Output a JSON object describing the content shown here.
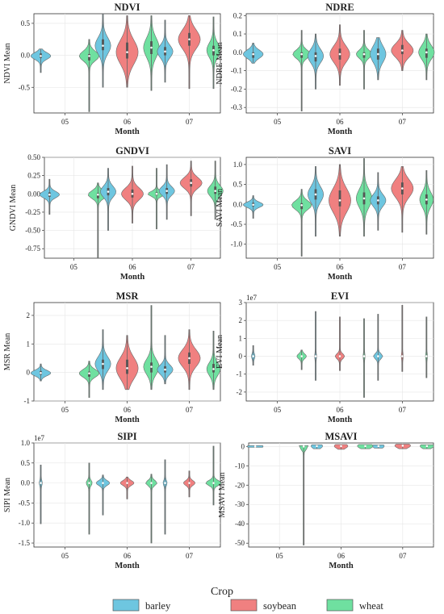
{
  "colors": {
    "barley": "#6ec6e0",
    "soybean": "#f08080",
    "wheat": "#6fe0a0"
  },
  "legend": {
    "title": "Crop",
    "placement": "bottom-center",
    "items": [
      {
        "key": "barley",
        "label": "barley"
      },
      {
        "key": "soybean",
        "label": "soybean"
      },
      {
        "key": "wheat",
        "label": "wheat"
      }
    ]
  },
  "chart_data": [
    {
      "type": "violin",
      "title": "NDVI",
      "xlabel": "Month",
      "ylabel": "NDVI Mean",
      "categories": [
        "05",
        "06",
        "07"
      ],
      "ylim": [
        -0.9,
        0.65
      ],
      "yticks": [
        0.5,
        0.0,
        -0.5
      ],
      "yticklabels": [
        "0.5",
        "0.0",
        "-0.5"
      ],
      "grid": true,
      "sci": "",
      "violins": [
        {
          "crop": "barley",
          "month": "05",
          "min": -0.27,
          "max": 0.1,
          "q1": -0.04,
          "median": -0.01,
          "q3": 0.03,
          "width": 0.9
        },
        {
          "crop": "wheat",
          "month": "05",
          "min": -0.88,
          "max": 0.25,
          "q1": -0.08,
          "median": -0.01,
          "q3": 0.02,
          "width": 0.9
        },
        {
          "crop": "barley",
          "month": "06",
          "min": -0.5,
          "max": 0.65,
          "q1": 0.08,
          "median": 0.15,
          "q3": 0.25,
          "width": 0.7
        },
        {
          "crop": "soybean",
          "month": "06",
          "min": -0.5,
          "max": 0.62,
          "q1": -0.05,
          "median": 0.05,
          "q3": 0.2,
          "width": 1.0
        },
        {
          "crop": "wheat",
          "month": "06",
          "min": -0.55,
          "max": 0.62,
          "q1": 0.02,
          "median": 0.12,
          "q3": 0.22,
          "width": 0.7
        },
        {
          "crop": "barley",
          "month": "07",
          "min": -0.42,
          "max": 0.55,
          "q1": 0.0,
          "median": 0.06,
          "q3": 0.13,
          "width": 0.7
        },
        {
          "crop": "soybean",
          "month": "07",
          "min": -0.52,
          "max": 0.62,
          "q1": 0.15,
          "median": 0.25,
          "q3": 0.35,
          "width": 1.0
        },
        {
          "crop": "wheat",
          "month": "07",
          "min": -0.52,
          "max": 0.6,
          "q1": 0.0,
          "median": 0.08,
          "q3": 0.15,
          "width": 0.6
        }
      ]
    },
    {
      "type": "violin",
      "title": "NDRE",
      "xlabel": "Month",
      "ylabel": "NDRE Mean",
      "categories": [
        "05",
        "06",
        "07"
      ],
      "ylim": [
        -0.33,
        0.21
      ],
      "yticks": [
        0.2,
        0.1,
        0.0,
        -0.1,
        -0.2,
        -0.3
      ],
      "yticklabels": [
        "0.2",
        "0.1",
        "0.0",
        "-0.1",
        "-0.2",
        "-0.3"
      ],
      "grid": true,
      "sci": "",
      "violins": [
        {
          "crop": "barley",
          "month": "05",
          "min": -0.06,
          "max": 0.05,
          "q1": -0.03,
          "median": -0.01,
          "q3": 0.0,
          "width": 0.9
        },
        {
          "crop": "wheat",
          "month": "05",
          "min": -0.32,
          "max": 0.12,
          "q1": -0.03,
          "median": -0.01,
          "q3": 0.0,
          "width": 0.8
        },
        {
          "crop": "barley",
          "month": "06",
          "min": -0.2,
          "max": 0.1,
          "q1": -0.05,
          "median": -0.02,
          "q3": 0.0,
          "width": 0.7
        },
        {
          "crop": "soybean",
          "month": "06",
          "min": -0.18,
          "max": 0.15,
          "q1": -0.04,
          "median": -0.01,
          "q3": 0.02,
          "width": 0.9
        },
        {
          "crop": "wheat",
          "month": "06",
          "min": -0.2,
          "max": 0.12,
          "q1": -0.03,
          "median": -0.01,
          "q3": 0.0,
          "width": 0.7
        },
        {
          "crop": "barley",
          "month": "07",
          "min": -0.15,
          "max": 0.08,
          "q1": -0.04,
          "median": -0.01,
          "q3": 0.02,
          "width": 0.7
        },
        {
          "crop": "soybean",
          "month": "07",
          "min": -0.1,
          "max": 0.12,
          "q1": -0.01,
          "median": 0.01,
          "q3": 0.04,
          "width": 1.0
        },
        {
          "crop": "wheat",
          "month": "07",
          "min": -0.15,
          "max": 0.1,
          "q1": -0.03,
          "median": 0.0,
          "q3": 0.02,
          "width": 0.7
        }
      ]
    },
    {
      "type": "violin",
      "title": "GNDVI",
      "xlabel": "Month",
      "ylabel": "GNDVI Mean",
      "categories": [
        "05",
        "06",
        "07"
      ],
      "ylim": [
        -0.88,
        0.5
      ],
      "yticks": [
        0.5,
        0.25,
        0.0,
        -0.25,
        -0.5,
        -0.75
      ],
      "yticklabels": [
        "0.50",
        "0.25",
        "0.00",
        "-0.25",
        "-0.50",
        "-0.75"
      ],
      "grid": true,
      "sci": "",
      "violins": [
        {
          "crop": "barley",
          "month": "05",
          "min": -0.28,
          "max": 0.2,
          "q1": -0.04,
          "median": -0.01,
          "q3": 0.02,
          "width": 0.9
        },
        {
          "crop": "wheat",
          "month": "05",
          "min": -0.88,
          "max": 0.15,
          "q1": -0.06,
          "median": -0.01,
          "q3": 0.01,
          "width": 0.9
        },
        {
          "crop": "barley",
          "month": "06",
          "min": -0.5,
          "max": 0.35,
          "q1": -0.02,
          "median": 0.03,
          "q3": 0.08,
          "width": 0.7
        },
        {
          "crop": "soybean",
          "month": "06",
          "min": -0.4,
          "max": 0.38,
          "q1": -0.05,
          "median": 0.0,
          "q3": 0.06,
          "width": 1.0
        },
        {
          "crop": "wheat",
          "month": "06",
          "min": -0.48,
          "max": 0.35,
          "q1": -0.02,
          "median": 0.0,
          "q3": 0.02,
          "width": 0.8
        },
        {
          "crop": "barley",
          "month": "07",
          "min": -0.35,
          "max": 0.4,
          "q1": 0.0,
          "median": 0.04,
          "q3": 0.08,
          "width": 0.7
        },
        {
          "crop": "soybean",
          "month": "07",
          "min": -0.3,
          "max": 0.45,
          "q1": 0.1,
          "median": 0.15,
          "q3": 0.2,
          "width": 1.0
        },
        {
          "crop": "wheat",
          "month": "07",
          "min": -0.35,
          "max": 0.45,
          "q1": 0.0,
          "median": 0.04,
          "q3": 0.1,
          "width": 0.7
        }
      ]
    },
    {
      "type": "violin",
      "title": "SAVI",
      "xlabel": "Month",
      "ylabel": "SAVI Mean",
      "categories": [
        "05",
        "06",
        "07"
      ],
      "ylim": [
        -1.35,
        1.18
      ],
      "yticks": [
        1.0,
        0.5,
        0.0,
        -0.5,
        -1.0
      ],
      "yticklabels": [
        "1.0",
        "0.5",
        "0.0",
        "-0.5",
        "-1.0"
      ],
      "grid": true,
      "sci": "",
      "violins": [
        {
          "crop": "barley",
          "month": "05",
          "min": -0.35,
          "max": 0.22,
          "q1": -0.05,
          "median": -0.01,
          "q3": 0.04,
          "width": 0.9
        },
        {
          "crop": "wheat",
          "month": "05",
          "min": -1.3,
          "max": 0.38,
          "q1": -0.12,
          "median": -0.02,
          "q3": 0.03,
          "width": 0.9
        },
        {
          "crop": "barley",
          "month": "06",
          "min": -0.8,
          "max": 0.95,
          "q1": 0.12,
          "median": 0.25,
          "q3": 0.38,
          "width": 0.7
        },
        {
          "crop": "soybean",
          "month": "06",
          "min": -0.8,
          "max": 1.0,
          "q1": -0.05,
          "median": 0.1,
          "q3": 0.35,
          "width": 1.0
        },
        {
          "crop": "wheat",
          "month": "06",
          "min": -0.8,
          "max": 1.15,
          "q1": 0.0,
          "median": 0.15,
          "q3": 0.3,
          "width": 0.7
        },
        {
          "crop": "barley",
          "month": "07",
          "min": -0.65,
          "max": 0.8,
          "q1": 0.0,
          "median": 0.1,
          "q3": 0.2,
          "width": 0.7
        },
        {
          "crop": "soybean",
          "month": "07",
          "min": -0.7,
          "max": 0.95,
          "q1": 0.25,
          "median": 0.4,
          "q3": 0.55,
          "width": 1.0
        },
        {
          "crop": "wheat",
          "month": "07",
          "min": -0.75,
          "max": 0.85,
          "q1": 0.0,
          "median": 0.12,
          "q3": 0.25,
          "width": 0.6
        }
      ]
    },
    {
      "type": "violin",
      "title": "MSR",
      "xlabel": "Month",
      "ylabel": "MSR Mean",
      "categories": [
        "05",
        "06",
        "07"
      ],
      "ylim": [
        -1.0,
        2.45
      ],
      "yticks": [
        2,
        1,
        0,
        -1
      ],
      "yticklabels": [
        "2",
        "1",
        "0",
        "-1"
      ],
      "grid": true,
      "sci": "",
      "violins": [
        {
          "crop": "barley",
          "month": "05",
          "min": -0.3,
          "max": 0.3,
          "q1": -0.08,
          "median": -0.02,
          "q3": 0.05,
          "width": 0.9
        },
        {
          "crop": "wheat",
          "month": "05",
          "min": -0.88,
          "max": 0.4,
          "q1": -0.15,
          "median": -0.03,
          "q3": 0.03,
          "width": 0.9
        },
        {
          "crop": "barley",
          "month": "06",
          "min": -0.6,
          "max": 1.5,
          "q1": 0.12,
          "median": 0.3,
          "q3": 0.45,
          "width": 0.7
        },
        {
          "crop": "soybean",
          "month": "06",
          "min": -0.6,
          "max": 1.3,
          "q1": -0.05,
          "median": 0.15,
          "q3": 0.45,
          "width": 1.0
        },
        {
          "crop": "wheat",
          "month": "06",
          "min": -0.6,
          "max": 2.35,
          "q1": 0.0,
          "median": 0.2,
          "q3": 0.35,
          "width": 0.7
        },
        {
          "crop": "barley",
          "month": "07",
          "min": -0.4,
          "max": 1.3,
          "q1": 0.0,
          "median": 0.1,
          "q3": 0.22,
          "width": 0.7
        },
        {
          "crop": "soybean",
          "month": "07",
          "min": -0.6,
          "max": 1.5,
          "q1": 0.3,
          "median": 0.5,
          "q3": 0.7,
          "width": 1.0
        },
        {
          "crop": "wheat",
          "month": "07",
          "min": -0.6,
          "max": 1.45,
          "q1": 0.0,
          "median": 0.12,
          "q3": 0.3,
          "width": 0.6
        }
      ]
    },
    {
      "type": "violin",
      "title": "EVI",
      "xlabel": "Month",
      "ylabel": "EVI Mean",
      "categories": [
        "05",
        "06",
        "07"
      ],
      "ylim": [
        -2.5,
        3.0
      ],
      "yticks": [
        3,
        2,
        1,
        0,
        -1,
        -2
      ],
      "yticklabels": [
        "3",
        "2",
        "1",
        "0",
        "-1",
        "-2"
      ],
      "grid": true,
      "sci": "1e7",
      "violins": [
        {
          "crop": "barley",
          "month": "05",
          "min": -0.5,
          "max": 0.6,
          "q1": -0.02,
          "median": 0.0,
          "q3": 0.02,
          "width": 0.12
        },
        {
          "crop": "wheat",
          "month": "05",
          "min": -0.75,
          "max": 0.35,
          "q1": -0.02,
          "median": 0.0,
          "q3": 0.02,
          "width": 0.4
        },
        {
          "crop": "barley",
          "month": "06",
          "min": -1.35,
          "max": 2.5,
          "q1": -0.02,
          "median": 0.0,
          "q3": 0.02,
          "width": 0.05
        },
        {
          "crop": "soybean",
          "month": "06",
          "min": -0.8,
          "max": 2.2,
          "q1": -0.02,
          "median": 0.0,
          "q3": 0.02,
          "width": 0.4
        },
        {
          "crop": "wheat",
          "month": "06",
          "min": -2.3,
          "max": 2.1,
          "q1": -0.02,
          "median": 0.0,
          "q3": 0.02,
          "width": 0.05
        },
        {
          "crop": "barley",
          "month": "07",
          "min": -1.35,
          "max": 2.35,
          "q1": -0.02,
          "median": 0.0,
          "q3": 0.02,
          "width": 0.4
        },
        {
          "crop": "soybean",
          "month": "07",
          "min": -0.85,
          "max": 2.85,
          "q1": -0.02,
          "median": 0.0,
          "q3": 0.02,
          "width": 0.05
        },
        {
          "crop": "wheat",
          "month": "07",
          "min": -1.2,
          "max": 2.2,
          "q1": -0.02,
          "median": 0.0,
          "q3": 0.02,
          "width": 0.05
        }
      ]
    },
    {
      "type": "violin",
      "title": "SIPI",
      "xlabel": "Month",
      "ylabel": "SIPI Mean",
      "categories": [
        "05",
        "06",
        "07"
      ],
      "ylim": [
        -1.6,
        1.0
      ],
      "yticks": [
        1.0,
        0.5,
        0.0,
        -0.5,
        -1.0,
        -1.5
      ],
      "yticklabels": [
        "1.0",
        "0.5",
        "0.0",
        "-0.5",
        "-1.0",
        "-1.5"
      ],
      "grid": true,
      "sci": "1e7",
      "violins": [
        {
          "crop": "barley",
          "month": "05",
          "min": -1.02,
          "max": 0.45,
          "q1": -0.01,
          "median": 0.0,
          "q3": 0.01,
          "width": 0.1
        },
        {
          "crop": "wheat",
          "month": "05",
          "min": -1.28,
          "max": 0.5,
          "q1": -0.01,
          "median": 0.0,
          "q3": 0.01,
          "width": 0.25
        },
        {
          "crop": "barley",
          "month": "06",
          "min": -0.8,
          "max": 0.2,
          "q1": -0.01,
          "median": 0.0,
          "q3": 0.01,
          "width": 0.6
        },
        {
          "crop": "soybean",
          "month": "06",
          "min": -0.4,
          "max": 0.15,
          "q1": -0.01,
          "median": 0.0,
          "q3": 0.01,
          "width": 0.6
        },
        {
          "crop": "wheat",
          "month": "06",
          "min": -1.5,
          "max": 0.22,
          "q1": -0.01,
          "median": 0.0,
          "q3": 0.01,
          "width": 0.5
        },
        {
          "crop": "barley",
          "month": "07",
          "min": -1.28,
          "max": 0.58,
          "q1": -0.01,
          "median": 0.0,
          "q3": 0.01,
          "width": 0.15
        },
        {
          "crop": "soybean",
          "month": "07",
          "min": -0.35,
          "max": 0.3,
          "q1": -0.01,
          "median": 0.0,
          "q3": 0.01,
          "width": 0.5
        },
        {
          "crop": "wheat",
          "month": "07",
          "min": -0.55,
          "max": 0.92,
          "q1": -0.01,
          "median": 0.0,
          "q3": 0.01,
          "width": 0.7
        }
      ]
    },
    {
      "type": "violin",
      "title": "MSAVI",
      "xlabel": "Month",
      "ylabel": "MSAVI Mean",
      "categories": [
        "05",
        "06",
        "07"
      ],
      "ylim": [
        -52,
        1.8
      ],
      "yticks": [
        0,
        -10,
        -20,
        -30,
        -40,
        -50
      ],
      "yticklabels": [
        "0",
        "-10",
        "-20",
        "-30",
        "-40",
        "-50"
      ],
      "grid": true,
      "sci": "",
      "violins": [
        {
          "crop": "barley",
          "month": "05",
          "min": -0.5,
          "max": 0.4,
          "q1": -0.05,
          "median": 0.0,
          "q3": 0.05,
          "width": 0.7
        },
        {
          "crop": "wheat",
          "month": "05",
          "min": -51,
          "max": 0.4,
          "q1": -0.1,
          "median": 0.0,
          "q3": 0.05,
          "width": 0.4
        },
        {
          "crop": "barley",
          "month": "06",
          "min": -1.2,
          "max": 0.9,
          "q1": 0.0,
          "median": 0.2,
          "q3": 0.4,
          "width": 0.5
        },
        {
          "crop": "soybean",
          "month": "06",
          "min": -1.5,
          "max": 1.0,
          "q1": 0.0,
          "median": 0.2,
          "q3": 0.4,
          "width": 0.6
        },
        {
          "crop": "wheat",
          "month": "06",
          "min": -1.2,
          "max": 1.0,
          "q1": 0.0,
          "median": 0.2,
          "q3": 0.4,
          "width": 0.7
        },
        {
          "crop": "barley",
          "month": "07",
          "min": -0.9,
          "max": 0.8,
          "q1": 0.0,
          "median": 0.2,
          "q3": 0.4,
          "width": 0.5
        },
        {
          "crop": "soybean",
          "month": "07",
          "min": -1.2,
          "max": 1.2,
          "q1": 0.2,
          "median": 0.4,
          "q3": 0.6,
          "width": 0.7
        },
        {
          "crop": "wheat",
          "month": "07",
          "min": -1.2,
          "max": 0.9,
          "q1": 0.0,
          "median": 0.2,
          "q3": 0.4,
          "width": 0.6
        }
      ]
    }
  ]
}
